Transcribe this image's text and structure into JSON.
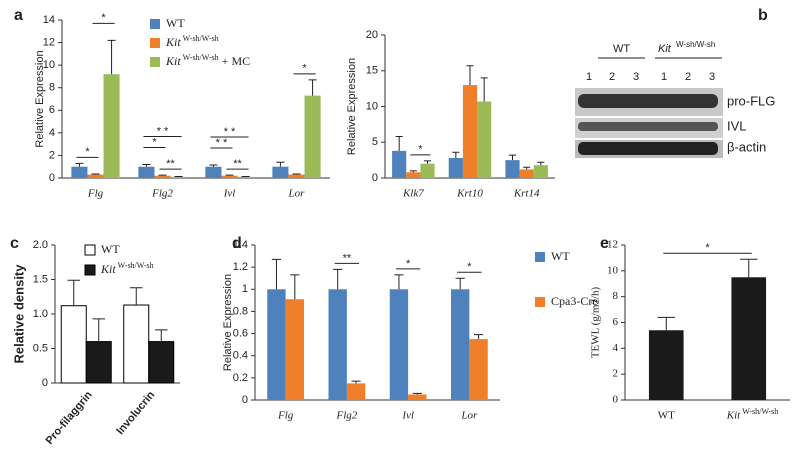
{
  "chart_data": [
    {
      "type": "bar",
      "panel": "a",
      "ylabel": "Relative Expression",
      "categories": [
        "Flg",
        "Flg2",
        "Ivl",
        "Lor"
      ],
      "series": [
        {
          "name": "WT",
          "color": "#4f81bd",
          "values": [
            1.0,
            1.0,
            1.0,
            1.0
          ],
          "errors": [
            0.3,
            0.2,
            0.15,
            0.4
          ]
        },
        {
          "name": "Kit",
          "name_sup": "W-sh/W-sh",
          "color": "#f07f2a",
          "values": [
            0.3,
            0.2,
            0.2,
            0.3
          ],
          "errors": [
            0.05,
            0.05,
            0.05,
            0.05
          ]
        },
        {
          "name": "Kit",
          "name_sup": "W-sh/W-sh",
          "name_suffix": "+ MC",
          "color": "#9bbb59",
          "values": [
            9.2,
            0.1,
            0.1,
            7.3
          ],
          "errors": [
            3.0,
            0.03,
            0.03,
            1.4
          ]
        }
      ],
      "ylim": [
        0,
        14
      ],
      "yticks": [
        0,
        2,
        4,
        6,
        8,
        10,
        12,
        14
      ],
      "annotations": [
        {
          "text": "*",
          "category": [
            0,
            0
          ],
          "series": [
            0,
            1
          ]
        },
        {
          "text": "*",
          "category": [
            0,
            0
          ],
          "series": [
            1,
            2
          ]
        },
        {
          "text": "**",
          "category": [
            1,
            1
          ],
          "series": [
            1,
            2
          ]
        },
        {
          "text": "*",
          "category": [
            1,
            1
          ],
          "series": [
            0,
            1
          ]
        },
        {
          "text": "* *",
          "category": [
            1,
            1
          ],
          "series": [
            0,
            2
          ]
        },
        {
          "text": "**",
          "category": [
            2,
            2
          ],
          "series": [
            1,
            2
          ]
        },
        {
          "text": "* *",
          "category": [
            2,
            2
          ],
          "series": [
            0,
            1
          ]
        },
        {
          "text": "* *",
          "category": [
            2,
            2
          ],
          "series": [
            0,
            2
          ]
        },
        {
          "text": "*",
          "category": [
            3,
            3
          ],
          "series": [
            1,
            2
          ]
        }
      ]
    },
    {
      "type": "bar",
      "ylabel": "Relative Expression",
      "categories": [
        "Klk7",
        "Krt10",
        "Krt14"
      ],
      "series": [
        {
          "color": "#4f81bd",
          "values": [
            3.8,
            2.8,
            2.5
          ],
          "errors": [
            2.0,
            0.8,
            0.7
          ]
        },
        {
          "color": "#f07f2a",
          "values": [
            0.8,
            13.0,
            1.2
          ],
          "errors": [
            0.2,
            2.7,
            0.3
          ]
        },
        {
          "color": "#9bbb59",
          "values": [
            2.0,
            10.7,
            1.8
          ],
          "errors": [
            0.4,
            3.3,
            0.4
          ]
        }
      ],
      "ylim": [
        0,
        20
      ],
      "yticks": [
        0,
        5,
        10,
        15,
        20
      ],
      "annotations": [
        {
          "text": "*",
          "category": [
            0,
            0
          ],
          "series": [
            1,
            2
          ]
        }
      ]
    },
    {
      "type": "bar",
      "panel": "c",
      "ylabel": "Relative density",
      "categories": [
        "Pro-filaggrin",
        "Involucrin"
      ],
      "series": [
        {
          "name": "WT",
          "color": "#ffffff",
          "edgecolor": "#000000",
          "values": [
            1.12,
            1.13
          ],
          "errors": [
            0.37,
            0.25
          ]
        },
        {
          "name": "Kit",
          "name_sup": "W-sh/W-sh",
          "color": "#1a1a1a",
          "edgecolor": "#000000",
          "values": [
            0.6,
            0.6
          ],
          "errors": [
            0.33,
            0.17
          ]
        }
      ],
      "ylim": [
        0,
        2.0
      ],
      "yticks": [
        0,
        0.5,
        {
          "value": 1.0,
          "label": "1.0"
        },
        1.5,
        {
          "value": 2.0,
          "label": "2.0"
        }
      ]
    },
    {
      "type": "bar",
      "panel": "d",
      "ylabel": "Relative Expression",
      "categories": [
        "Flg",
        "Flg2",
        "Ivl",
        "Lor"
      ],
      "series": [
        {
          "name": "WT",
          "color": "#4f81bd",
          "values": [
            1,
            1,
            1,
            1
          ],
          "errors": [
            0.27,
            0.18,
            0.13,
            0.1
          ]
        },
        {
          "name": "Cpa3-Cre",
          "color": "#f07f2a",
          "values": [
            0.91,
            0.15,
            0.05,
            0.55
          ],
          "errors": [
            0.22,
            0.02,
            0.01,
            0.04
          ]
        }
      ],
      "ylim": [
        0,
        1.4
      ],
      "yticks": [
        0,
        0.2,
        0.4,
        0.6,
        0.8,
        1,
        1.2,
        1.4
      ],
      "annotations": [
        {
          "text": "**",
          "category": [
            1,
            1
          ],
          "series": [
            0,
            1
          ]
        },
        {
          "text": "*",
          "category": [
            2,
            2
          ],
          "series": [
            0,
            1
          ]
        },
        {
          "text": "*",
          "category": [
            3,
            3
          ],
          "series": [
            0,
            1
          ]
        }
      ]
    },
    {
      "type": "bar",
      "panel": "e",
      "ylabel": "TEWL (g/m2/h)",
      "categories": [
        "WT",
        "Kit"
      ],
      "category_superscripts": {
        "1": "W-sh/W-sh"
      },
      "series": [
        {
          "color": "#1a1a1a",
          "values": [
            5.4,
            9.5
          ],
          "errors": [
            1.0,
            1.4
          ]
        }
      ],
      "ylim": [
        0,
        12
      ],
      "yticks": [
        0,
        2,
        4,
        6,
        8,
        10,
        12
      ],
      "annotations": [
        {
          "text": "*",
          "category": [
            0,
            1
          ],
          "series": [
            0,
            0
          ]
        }
      ]
    }
  ],
  "blot": {
    "panel": "b",
    "group1": "WT",
    "group2": "Kit",
    "group2_sup": "W-sh/W-sh",
    "lanes": [
      "1",
      "2",
      "3",
      "1",
      "2",
      "3"
    ],
    "bands": [
      "pro-FLG",
      "IVL",
      "β-actin"
    ]
  }
}
